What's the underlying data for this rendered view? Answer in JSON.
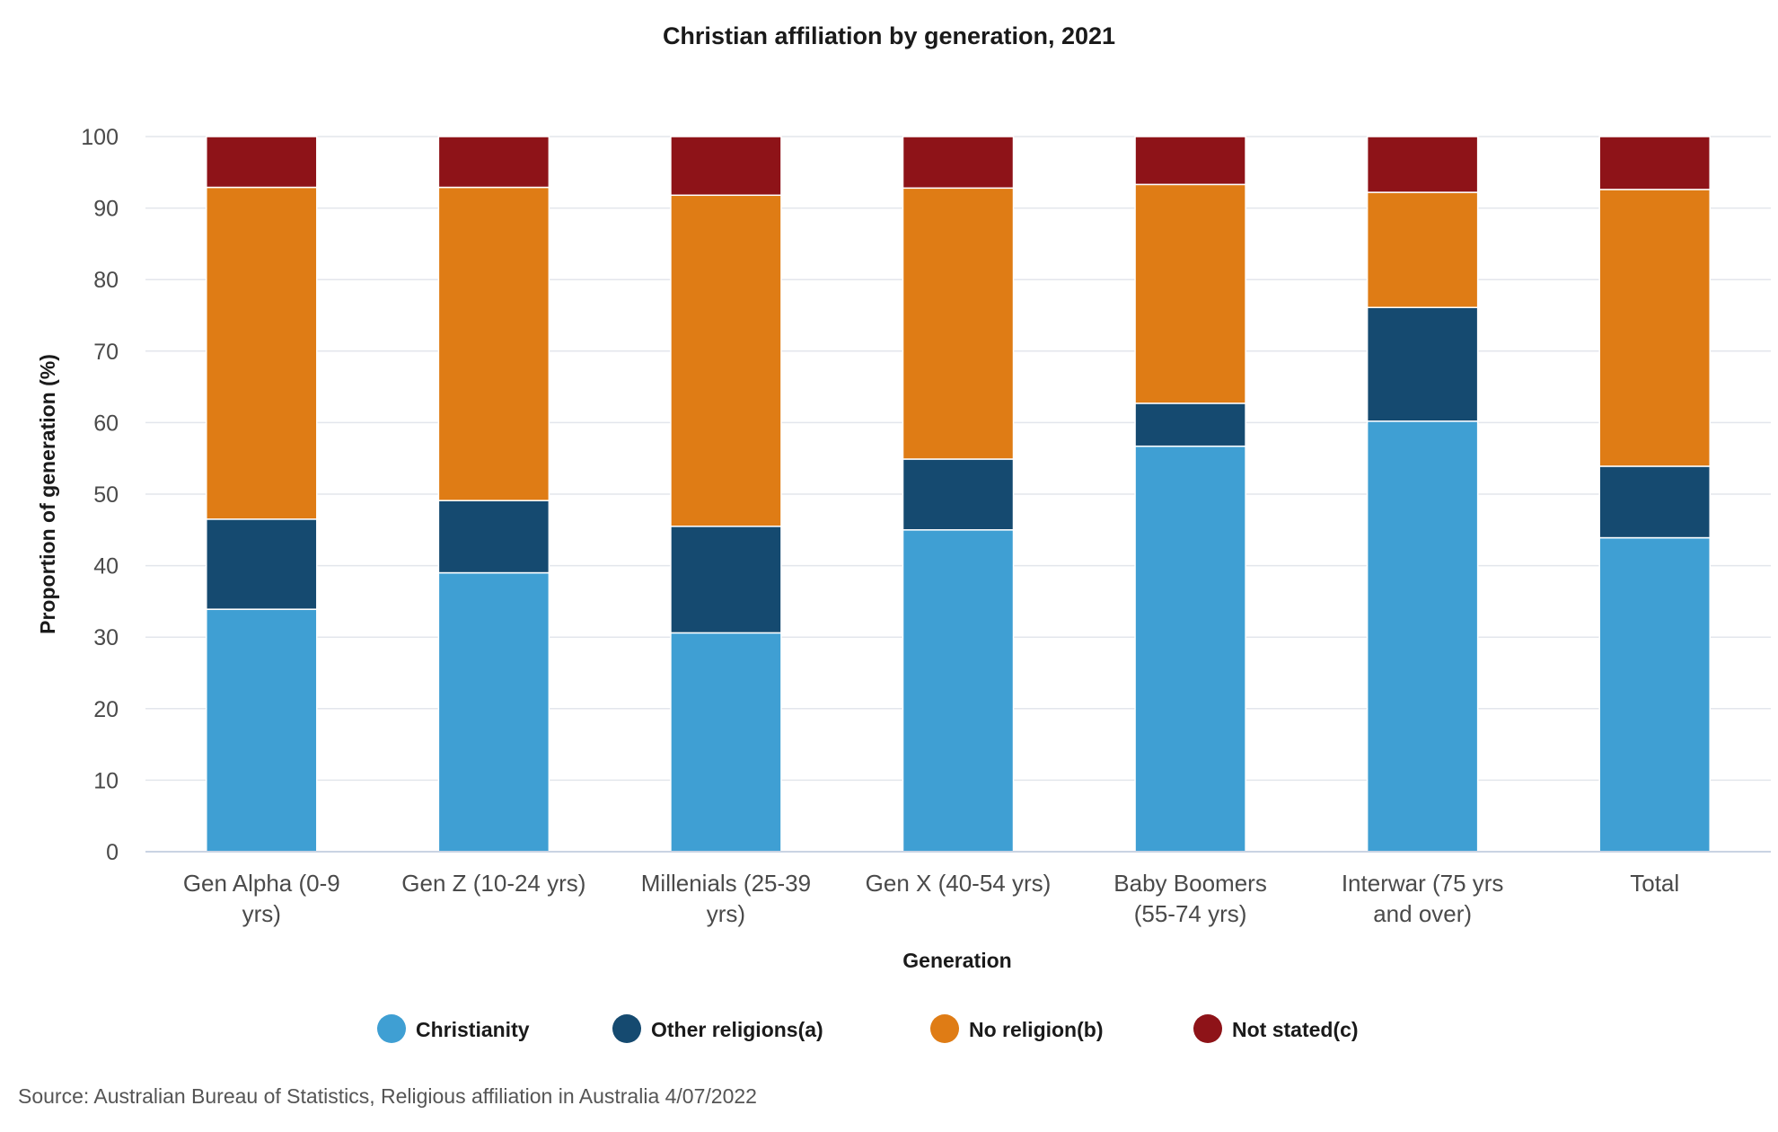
{
  "chart_data": {
    "type": "bar",
    "stacked": true,
    "title": "Christian affiliation by generation, 2021",
    "xlabel": "Generation",
    "ylabel": "Proportion of generation (%)",
    "ylim": [
      0,
      100
    ],
    "yticks": [
      0,
      10,
      20,
      30,
      40,
      50,
      60,
      70,
      80,
      90,
      100
    ],
    "grid": true,
    "legend_position": "bottom",
    "categories": [
      [
        "Gen Alpha (0-9",
        "yrs)"
      ],
      [
        "Gen Z (10-24 yrs)"
      ],
      [
        "Millenials (25-39",
        "yrs)"
      ],
      [
        "Gen X (40-54 yrs)"
      ],
      [
        "Baby Boomers",
        "(55-74 yrs)"
      ],
      [
        "Interwar (75 yrs",
        "and over)"
      ],
      [
        "Total"
      ]
    ],
    "series": [
      {
        "name": "Christianity",
        "color": "#3f9fd3",
        "values": [
          33.9,
          39.0,
          30.6,
          45.0,
          56.7,
          60.2,
          43.9
        ]
      },
      {
        "name": "Other religions(a)",
        "color": "#154a70",
        "values": [
          12.6,
          10.1,
          14.9,
          9.9,
          6.0,
          15.9,
          10.0
        ]
      },
      {
        "name": "No religion(b)",
        "color": "#df7c15",
        "values": [
          46.4,
          43.8,
          46.3,
          37.9,
          30.6,
          16.1,
          38.7
        ]
      },
      {
        "name": "Not stated(c)",
        "color": "#8e1318",
        "values": [
          7.1,
          7.1,
          8.2,
          7.2,
          6.7,
          7.8,
          7.4
        ]
      }
    ],
    "source": "Source: Australian Bureau of Statistics, Religious affiliation in Australia 4/07/2022"
  }
}
